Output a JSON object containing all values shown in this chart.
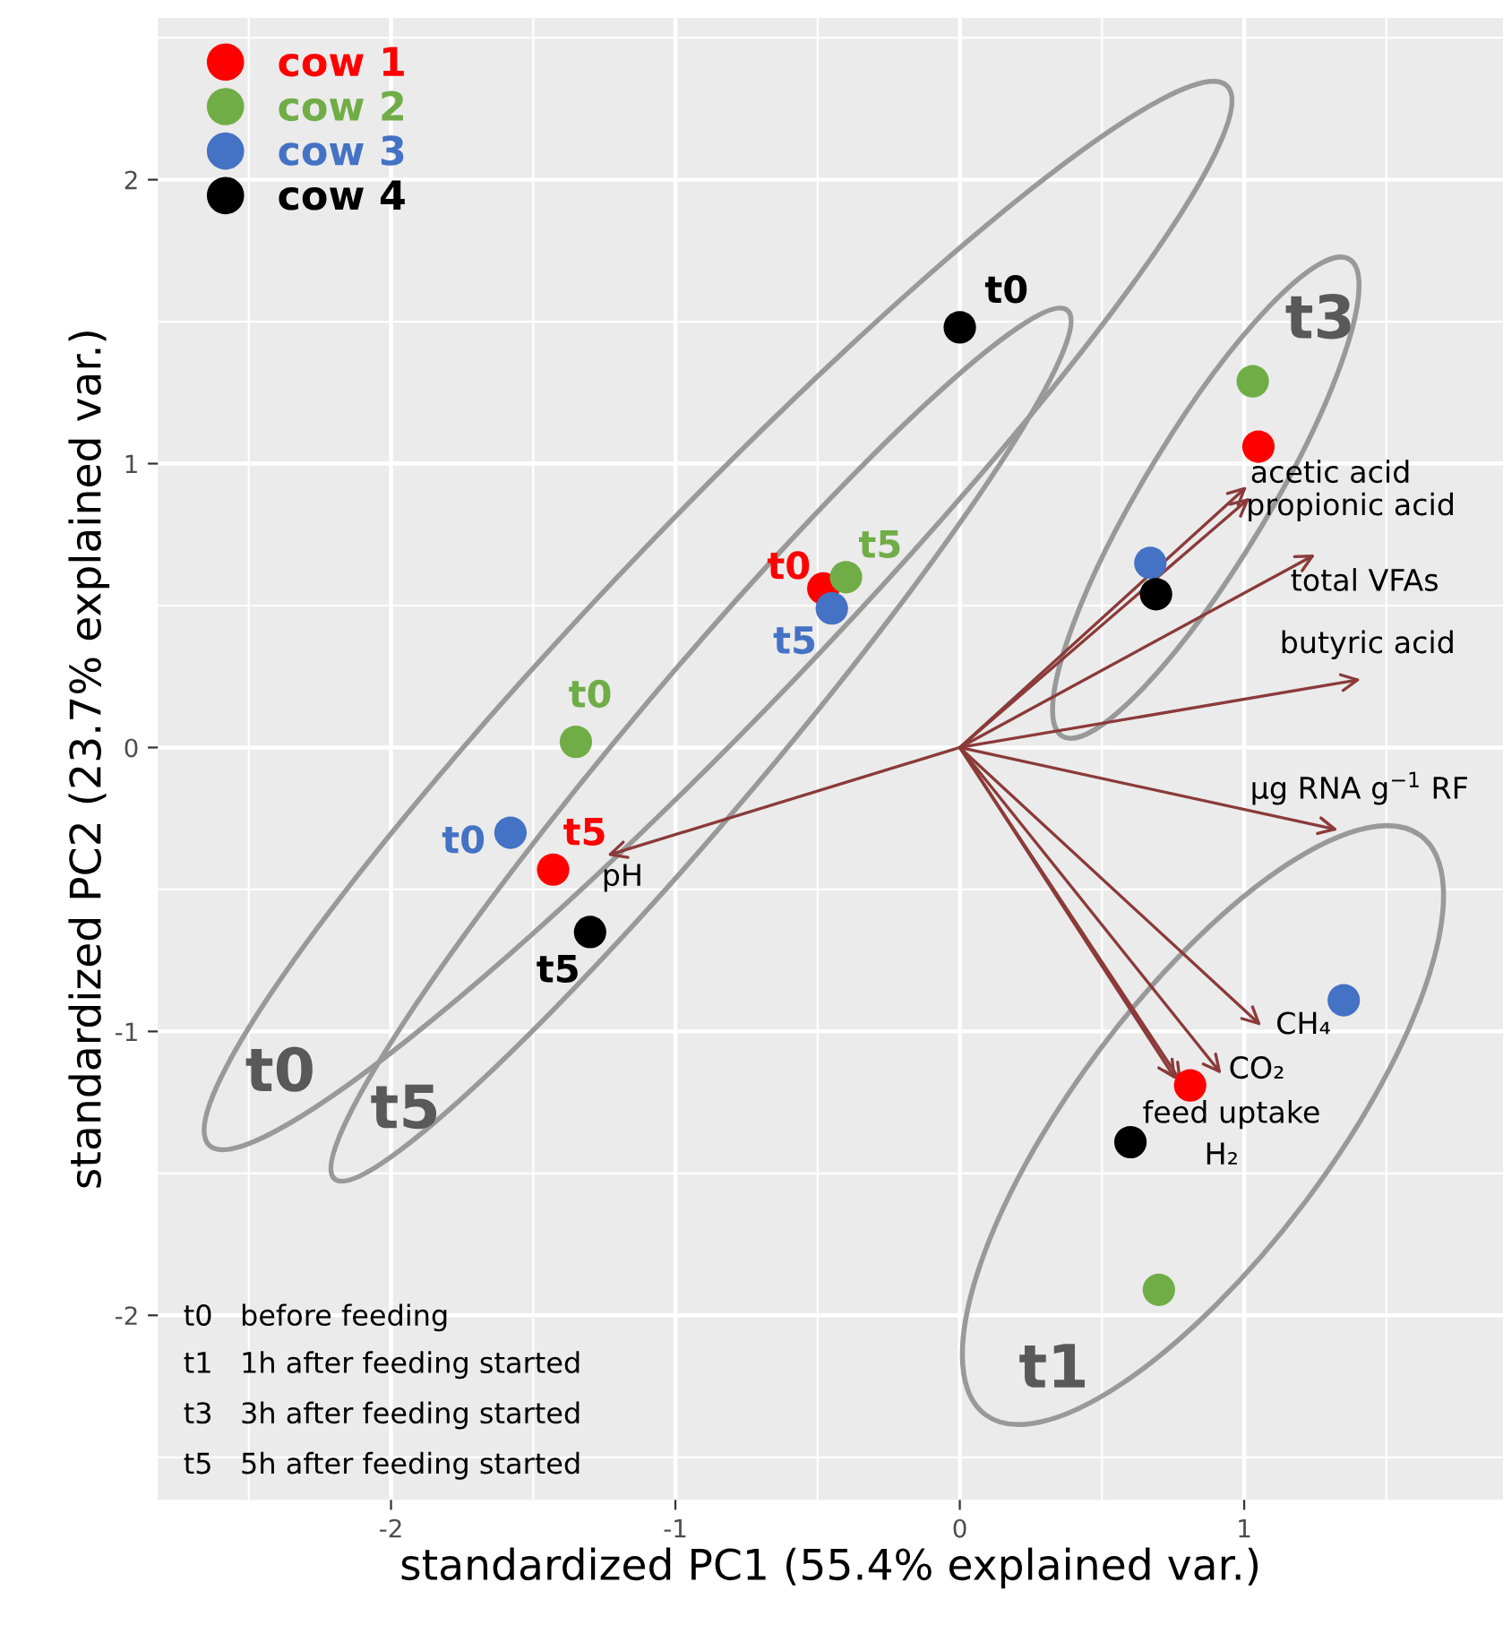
{
  "chart_data": {
    "type": "scatter",
    "xlabel": "standardized PC1 (55.4% explained var.)",
    "ylabel": "standardized PC2 (23.7% explained var.)",
    "xlim": [
      -2.82,
      1.91
    ],
    "ylim": [
      -2.65,
      2.57
    ],
    "xticks": [
      {
        "value": -2.5,
        "label": null
      },
      -2,
      {
        "value": -1.5,
        "label": null
      },
      -1,
      {
        "value": -0.5,
        "label": null
      },
      0,
      {
        "value": 0.5,
        "label": null
      },
      1,
      {
        "value": 1.5,
        "label": null
      }
    ],
    "yticks": [
      {
        "value": -2.5,
        "label": null
      },
      -2,
      {
        "value": -1.5,
        "label": null
      },
      -1,
      {
        "value": -0.5,
        "label": null
      },
      0,
      {
        "value": 0.5,
        "label": null
      },
      1,
      {
        "value": 1.5,
        "label": null
      },
      2,
      {
        "value": 2.5,
        "label": null
      }
    ],
    "grid": true,
    "legend": "top left",
    "series": [
      {
        "name": "cow 1",
        "color": "#ff0000",
        "marker": "circle",
        "x": [
          -0.48,
          1.05,
          -1.43,
          0.81
        ],
        "values": [
          0.56,
          1.06,
          -0.43,
          -1.19
        ]
      },
      {
        "name": "cow 2",
        "color": "#70ad47",
        "marker": "circle",
        "x": [
          -1.35,
          1.03,
          -0.4,
          0.7
        ],
        "values": [
          0.02,
          1.29,
          0.6,
          -1.91
        ]
      },
      {
        "name": "cow 3",
        "color": "#4472c4",
        "marker": "circle",
        "x": [
          -1.58,
          0.67,
          -0.45,
          1.35
        ],
        "values": [
          -0.3,
          0.65,
          0.49,
          -0.89
        ]
      },
      {
        "name": "cow 4",
        "color": "#000000",
        "marker": "circle",
        "x": [
          0.0,
          0.69,
          -1.3,
          0.6
        ],
        "values": [
          1.48,
          0.54,
          -0.65,
          -1.39
        ]
      }
    ],
    "annotations": [
      {
        "text": "t0",
        "x": 0.0,
        "y": 1.48
      },
      {
        "text": "t0",
        "x": -0.48,
        "y": 0.56
      },
      {
        "text": "t5",
        "x": -0.4,
        "y": 0.6
      },
      {
        "text": "t5",
        "x": -0.45,
        "y": 0.49
      },
      {
        "text": "t0",
        "x": -1.35,
        "y": 0.02
      },
      {
        "text": "t0",
        "x": -1.58,
        "y": -0.3
      },
      {
        "text": "t5",
        "x": -1.43,
        "y": -0.43
      },
      {
        "text": "t5",
        "x": -1.3,
        "y": -0.65
      },
      "acetic acid",
      "propionic acid",
      "total VFAs",
      "butyric acid",
      "µg RNA g$^{−1}$ RF",
      "CH₄",
      "CO₂",
      "feed uptake",
      "H₂",
      "pH",
      "t0",
      "t5",
      "t3",
      "t1",
      "t0   before feeding",
      "t1   1h after feeding started",
      "t3   3h after feeding started",
      "t5   5h after feeding started"
    ]
  }
}
